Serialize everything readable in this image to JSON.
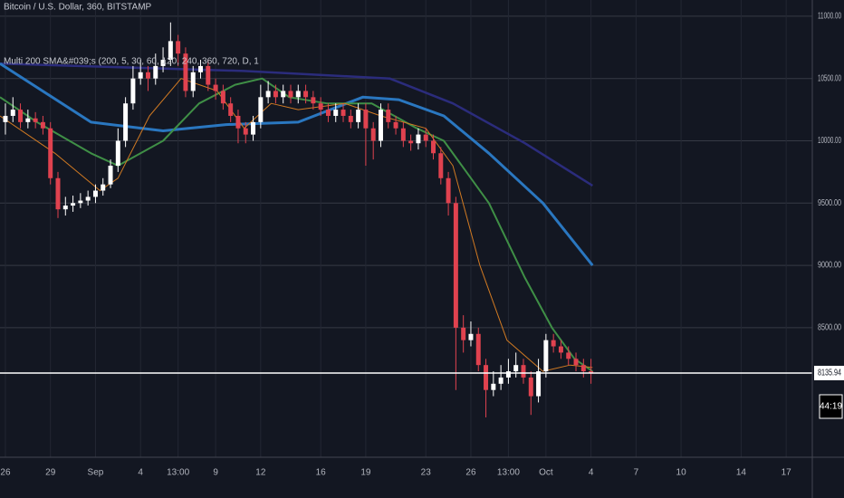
{
  "chart_data": {
    "type": "candlestick",
    "title": "Bitcoin / U.S. Dollar, 360, BITSTAMP",
    "subtitle": "Multi 200 SMA&#039;s (200, 5, 30, 60, 120, 240, 360, 720, D, 1",
    "xlim": [
      -0.36,
      53.74
    ],
    "xticks": [
      {
        "value": 0,
        "label": "26"
      },
      {
        "value": 3,
        "label": "29"
      },
      {
        "value": 6,
        "label": "Sep"
      },
      {
        "value": 9,
        "label": "4"
      },
      {
        "value": 11.5,
        "label": "13:00"
      },
      {
        "value": 14,
        "label": "9"
      },
      {
        "value": 17,
        "label": "12"
      },
      {
        "value": 21,
        "label": "16"
      },
      {
        "value": 24,
        "label": "19"
      },
      {
        "value": 28,
        "label": "23"
      },
      {
        "value": 31,
        "label": "26"
      },
      {
        "value": 33.5,
        "label": "13:00"
      },
      {
        "value": 36,
        "label": "Oct"
      },
      {
        "value": 39,
        "label": "4"
      },
      {
        "value": 42,
        "label": "7"
      },
      {
        "value": 45,
        "label": "10"
      },
      {
        "value": 49,
        "label": "14"
      },
      {
        "value": 52,
        "label": "17"
      }
    ],
    "ylim": [
      7460,
      11130
    ],
    "yticks": [
      {
        "value": 8500,
        "label": "8500.00"
      },
      {
        "value": 9000,
        "label": "9000.00"
      },
      {
        "value": 9500,
        "label": "9500.00"
      },
      {
        "value": 10000,
        "label": "10000.00"
      },
      {
        "value": 10500,
        "label": "10500.00"
      },
      {
        "value": 11000,
        "label": "11000.00"
      }
    ],
    "grid": true,
    "up_color": "#ffffff",
    "down_color": "#e0424f",
    "x": [
      0,
      0.5,
      1,
      1.5,
      2,
      2.5,
      3,
      3.5,
      4,
      4.5,
      5,
      5.5,
      6,
      6.5,
      7,
      7.5,
      8,
      8.5,
      9,
      9.5,
      10,
      10.5,
      11,
      11.5,
      12,
      12.5,
      13,
      13.5,
      14,
      14.5,
      15,
      15.5,
      16,
      16.5,
      17,
      17.5,
      18,
      18.5,
      19,
      19.5,
      20,
      20.5,
      21,
      21.5,
      22,
      22.5,
      23,
      23.5,
      24,
      24.5,
      25,
      25.5,
      26,
      26.5,
      27,
      27.5,
      28,
      28.5,
      29,
      29.5,
      30,
      30.5,
      31,
      31.5,
      32,
      32.5,
      33,
      33.5,
      34,
      34.5,
      35,
      35.5,
      36,
      36.5,
      37,
      37.5,
      38,
      38.5,
      39
    ],
    "open": [
      10150,
      10200,
      10250,
      10150,
      10180,
      10150,
      10100,
      9700,
      9450,
      9480,
      9500,
      9520,
      9550,
      9600,
      9650,
      9800,
      10000,
      10300,
      10500,
      10550,
      10500,
      10600,
      10650,
      10800,
      10700,
      10400,
      10550,
      10600,
      10450,
      10400,
      10300,
      10200,
      10100,
      10050,
      10150,
      10350,
      10400,
      10350,
      10400,
      10350,
      10400,
      10350,
      10300,
      10250,
      10200,
      10250,
      10200,
      10150,
      10250,
      10100,
      10000,
      10250,
      10150,
      10100,
      10000,
      9980,
      10050,
      10000,
      9900,
      9700,
      9500,
      8500,
      8400,
      8450,
      8200,
      8000,
      8050,
      8100,
      8150,
      8200,
      8100,
      7950,
      8150,
      8400,
      8350,
      8300,
      8250,
      8200,
      8150
    ],
    "high": [
      10300,
      10350,
      10300,
      10250,
      10230,
      10200,
      10150,
      9750,
      9550,
      9560,
      9580,
      9600,
      9650,
      9700,
      9850,
      10100,
      10350,
      10600,
      10650,
      10600,
      10700,
      10750,
      10950,
      10850,
      10750,
      10600,
      10650,
      10650,
      10500,
      10450,
      10350,
      10250,
      10150,
      10200,
      10450,
      10480,
      10450,
      10450,
      10450,
      10450,
      10450,
      10400,
      10350,
      10300,
      10300,
      10300,
      10250,
      10300,
      10300,
      10150,
      10300,
      10300,
      10200,
      10150,
      10050,
      10100,
      10100,
      10050,
      9950,
      9750,
      9550,
      8600,
      8550,
      8500,
      8250,
      8150,
      8200,
      8250,
      8300,
      8250,
      8150,
      8250,
      8450,
      8450,
      8400,
      8350,
      8300,
      8250,
      8250
    ],
    "low": [
      10050,
      10150,
      10100,
      10100,
      10100,
      10050,
      9650,
      9380,
      9400,
      9430,
      9460,
      9480,
      9500,
      9560,
      9620,
      9750,
      9950,
      10250,
      10450,
      10400,
      10450,
      10550,
      10600,
      10600,
      10350,
      10350,
      10500,
      10400,
      10330,
      10250,
      10150,
      9980,
      9980,
      10000,
      10100,
      10300,
      10300,
      10300,
      10300,
      10300,
      10300,
      10250,
      10200,
      10150,
      10150,
      10150,
      10100,
      10100,
      9800,
      9850,
      9950,
      10100,
      10050,
      9950,
      9920,
      9930,
      9950,
      9850,
      9650,
      9400,
      8000,
      8300,
      8350,
      8150,
      7780,
      7950,
      8000,
      8050,
      8100,
      8050,
      7800,
      7900,
      8100,
      8300,
      8250,
      8200,
      8150,
      8100,
      8050
    ],
    "close": [
      10200,
      10250,
      10150,
      10180,
      10150,
      10100,
      9700,
      9450,
      9480,
      9500,
      9520,
      9550,
      9600,
      9650,
      9800,
      10000,
      10300,
      10500,
      10550,
      10500,
      10600,
      10650,
      10800,
      10700,
      10400,
      10550,
      10600,
      10450,
      10400,
      10300,
      10200,
      10100,
      10050,
      10150,
      10350,
      10400,
      10350,
      10400,
      10350,
      10400,
      10350,
      10300,
      10250,
      10200,
      10250,
      10200,
      10150,
      10250,
      10100,
      10000,
      10250,
      10150,
      10100,
      10000,
      9980,
      10050,
      10000,
      9900,
      9700,
      9500,
      8500,
      8400,
      8450,
      8200,
      8000,
      8050,
      8100,
      8150,
      8200,
      8100,
      7950,
      8150,
      8400,
      8350,
      8300,
      8250,
      8200,
      8150,
      8135.94
    ],
    "lines": [
      {
        "color": "#2b2c7c",
        "width": 2.5,
        "x": [
          -0.36,
          15.9,
          25.6,
          29.8,
          34.6,
          39.1
        ],
        "values": [
          10620,
          10560,
          10500,
          10300,
          9980,
          9640
        ]
      },
      {
        "color": "#2a77c0",
        "width": 3,
        "x": [
          -0.36,
          5.7,
          10.5,
          14.7,
          19.5,
          23.8,
          26.2,
          29.2,
          32.2,
          35.8,
          39.1
        ],
        "values": [
          10620,
          10150,
          10080,
          10130,
          10150,
          10350,
          10330,
          10200,
          9900,
          9500,
          9000
        ]
      },
      {
        "color": "#3f8f46",
        "width": 2,
        "x": [
          -0.36,
          2.1,
          5.7,
          7.5,
          10.5,
          12.9,
          15.3,
          17.1,
          18.9,
          21.4,
          24.4,
          27.4,
          29.2,
          32.2,
          34.6,
          36.4,
          37.9,
          39.1
        ],
        "values": [
          10350,
          10150,
          9900,
          9800,
          10000,
          10300,
          10450,
          10500,
          10350,
          10300,
          10300,
          10100,
          10000,
          9500,
          8900,
          8500,
          8250,
          8150
        ]
      },
      {
        "color": "#d17a22",
        "width": 1,
        "x": [
          -0.36,
          3.3,
          6.3,
          7.5,
          9.6,
          11.7,
          14.1,
          15.9,
          17.7,
          19.5,
          22.6,
          25,
          28,
          29.8,
          31.6,
          33.4,
          35.8,
          37.6,
          39.1
        ],
        "values": [
          10200,
          9900,
          9600,
          9700,
          10200,
          10500,
          10400,
          10100,
          10300,
          10250,
          10300,
          10200,
          10100,
          9800,
          9000,
          8400,
          8150,
          8200,
          8180
        ]
      }
    ],
    "last_price": {
      "value": 8135.94,
      "label": "8135.94"
    },
    "countdown": "44:19"
  }
}
